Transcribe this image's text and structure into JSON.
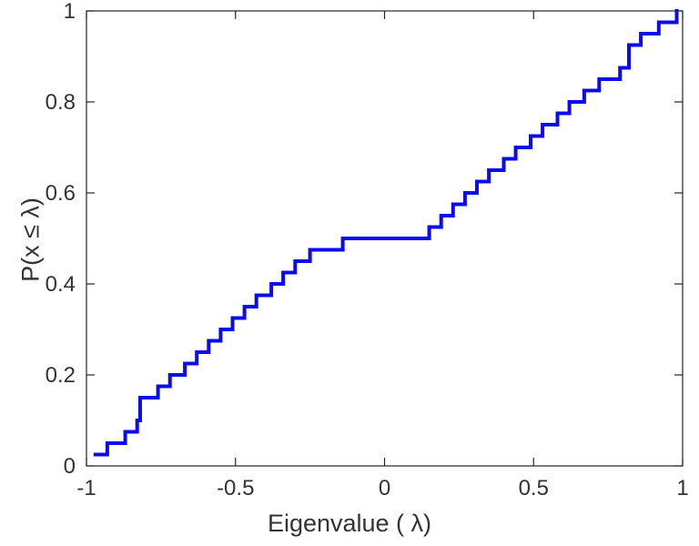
{
  "chart_data": {
    "type": "line",
    "subtype": "ecdf-stairs",
    "title": "",
    "xlabel": "Eigenvalue (  λ)",
    "ylabel": "P(x ≤ λ)",
    "xlim": [
      -1,
      1
    ],
    "ylim": [
      0,
      1
    ],
    "xticks": [
      -1,
      -0.5,
      0,
      0.5,
      1
    ],
    "xtick_labels": [
      "-1",
      "-0.5",
      "0",
      "0.5",
      "1"
    ],
    "yticks": [
      0,
      0.2,
      0.4,
      0.6,
      0.8,
      1
    ],
    "ytick_labels": [
      "0",
      "0.2",
      "0.4",
      "0.6",
      "0.8",
      "1"
    ],
    "grid": false,
    "legend": null,
    "line_color": "#0b0bee",
    "line_width": 4,
    "axis_color": "#262626",
    "series_note": "Empirical CDF of 40 eigenvalues; y steps of 1/40 at each sorted eigenvalue",
    "eigenvalues": [
      -0.97,
      -0.93,
      -0.87,
      -0.83,
      -0.82,
      -0.82,
      -0.76,
      -0.72,
      -0.67,
      -0.63,
      -0.59,
      -0.55,
      -0.51,
      -0.47,
      -0.43,
      -0.38,
      -0.34,
      -0.3,
      -0.25,
      -0.14,
      0.15,
      0.19,
      0.23,
      0.27,
      0.31,
      0.35,
      0.4,
      0.44,
      0.49,
      0.53,
      0.58,
      0.62,
      0.67,
      0.72,
      0.79,
      0.82,
      0.82,
      0.86,
      0.92,
      0.98
    ],
    "ecdf_y_range": [
      0.025,
      1.0
    ]
  }
}
